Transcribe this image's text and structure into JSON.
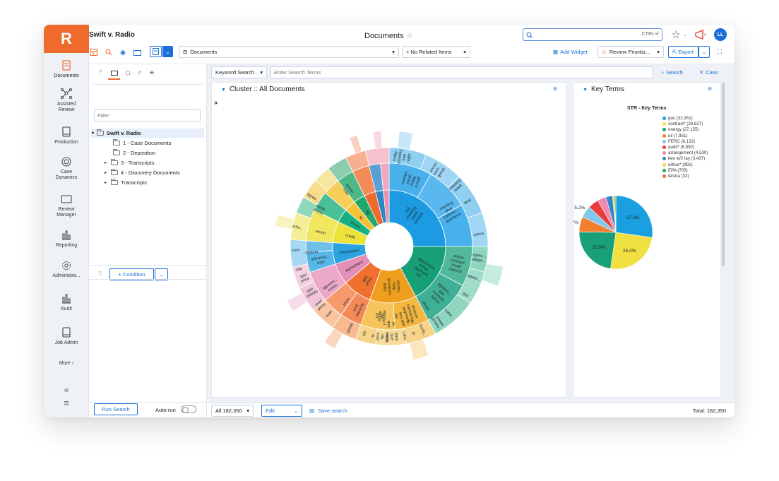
{
  "app": {
    "logo_letter": "R",
    "brand_color": "#ee6a2d",
    "accent_color": "#1a6fd8"
  },
  "header": {
    "case_title": "Swift v. Radio",
    "page_title": "Documents",
    "search_shortcut": "CTRL+/",
    "avatar_initials": "LL"
  },
  "rail": {
    "items": [
      {
        "label": "Documents",
        "icon": "documents-icon"
      },
      {
        "label": "Assisted\nReview",
        "icon": "network-icon"
      },
      {
        "label": "Production",
        "icon": "production-icon"
      },
      {
        "label": "Case\nDynamics",
        "icon": "target-icon"
      },
      {
        "label": "Review\nManager",
        "icon": "folder-icon"
      },
      {
        "label": "Reporting",
        "icon": "bar-chart-icon"
      },
      {
        "label": "Administra...",
        "icon": "gear-icon"
      },
      {
        "label": "Audit",
        "icon": "bar-chart-icon"
      },
      {
        "label": "Job Admin",
        "icon": "job-icon"
      }
    ],
    "more": "More"
  },
  "toolbar": {
    "view_select": "Documents",
    "related_select": "+ No Related Items",
    "add_widget": "Add Widget",
    "review_priority": "Review Prioritiz...",
    "export": "Export"
  },
  "leftpanel": {
    "filter_placeholder": "Filter",
    "tree": {
      "root": "Swift v. Radio",
      "children": [
        "1 - Case Documents",
        "2 - Deposition",
        "3 - Transcripts",
        "4 - Discovery Documents",
        "Transcripts"
      ]
    },
    "condition_button": "+ Condition",
    "run_search": "Run Search",
    "auto_run": "Auto-run"
  },
  "search": {
    "type": "Keyword Search",
    "placeholder": "Enter Search Terms",
    "search_button": "Search",
    "clear_button": "Clear"
  },
  "cluster_panel": {
    "title": "Cluster :: All Documents",
    "expand": "»",
    "labels": [
      {
        "t": "call\nmeeting\nweek\ncontact"
      },
      {
        "t": "agreement\nenron\npayment\nsct"
      },
      {
        "t": "ubuntu\nhelp\nproblems\nlinks"
      },
      {
        "t": "gas\nprice"
      },
      {
        "t": "agreement"
      },
      {
        "t": "information"
      },
      {
        "t": "credit"
      },
      {
        "t": "enron"
      },
      {
        "t": "ie"
      },
      {
        "t": "ltd"
      },
      {
        "t": "enron\ncontract\ncredit\ninterest"
      },
      {
        "t": "agreem...\ngas\ncontract\nterms"
      },
      {
        "t": "amount\ntransact...\npayment"
      },
      {
        "t": "enron\nmobile"
      },
      {
        "t": "end\ncapacity"
      },
      {
        "t": "informat...\nuser"
      },
      {
        "t": "system"
      },
      {
        "t": "risk"
      },
      {
        "t": "user"
      },
      {
        "t": "infor..."
      },
      {
        "t": "meeting\ndeal\ncomme...\nquestions"
      },
      {
        "t": "contact\nemail\nfriday\ne-mail"
      },
      {
        "t": "today\nmonday\nfree\nnight"
      },
      {
        "t": "enron\nenro...\ngroup"
      },
      {
        "t": "meeting\nweek"
      },
      {
        "t": "deal"
      },
      {
        "t": "enron"
      },
      {
        "t": "agree...\nobliga..."
      },
      {
        "t": "agree..."
      },
      {
        "t": "gas"
      },
      {
        "t": "contr..."
      },
      {
        "t": "power\ngenera..."
      },
      {
        "t": "power"
      },
      {
        "t": "confir..."
      },
      {
        "t": "para\nque\ncomo"
      },
      {
        "t": "lo\npero\nlas\ncomo"
      },
      {
        "t": "ich"
      },
      {
        "t": "ich\ndie"
      },
      {
        "t": "group"
      },
      {
        "t": "east"
      },
      {
        "t": "mmf\nprice"
      },
      {
        "t": "price"
      },
      {
        "t": "gas\nmmbtu"
      },
      {
        "t": "gas\nprice"
      },
      {
        "t": "agreem...\nenron"
      },
      {
        "t": "agree..."
      },
      {
        "t": "enron"
      },
      {
        "t": "credit\nenron"
      },
      {
        "t": "enron\nisda"
      },
      {
        "t": "je"
      },
      {
        "t": "und\ndie"
      },
      {
        "t": "de\nla\nque"
      },
      {
        "t": "de\nque\nil"
      },
      {
        "t": "cabo"
      }
    ]
  },
  "key_terms": {
    "panel_title": "Key Terms",
    "chart_title": "STR - Key Terms",
    "legend": [
      {
        "label": "gas (32,351)",
        "color": "#1aa0e0"
      },
      {
        "label": "contract* (29,637)",
        "color": "#f0e040"
      },
      {
        "label": "energy (27,155)",
        "color": "#1aa079"
      },
      {
        "label": "oil (7,951)",
        "color": "#f08030"
      },
      {
        "label": "FERC (6,132)",
        "color": "#80c8ec"
      },
      {
        "label": "audit* (5,592)",
        "color": "#e83c3c"
      },
      {
        "label": "arrangement (4,530)",
        "color": "#f08ab0"
      },
      {
        "label": "ken w/2 lay (3,437)",
        "color": "#2e86c8"
      },
      {
        "label": "arthur* (991)",
        "color": "#f4d24c"
      },
      {
        "label": "EPA (705)",
        "color": "#22aa55"
      },
      {
        "label": "telstra (32)",
        "color": "#f06a30"
      }
    ],
    "pie_labels": [
      "27.3%",
      "25.0%",
      "22.9%",
      "6.7%",
      "5.2%"
    ]
  },
  "chart_data": {
    "type": "pie",
    "title": "STR - Key Terms",
    "categories": [
      "gas",
      "contract*",
      "energy",
      "oil",
      "FERC",
      "audit*",
      "arrangement",
      "ken w/2 lay",
      "arthur*",
      "EPA",
      "telstra"
    ],
    "values": [
      32351,
      29637,
      27155,
      7951,
      6132,
      5592,
      4530,
      3437,
      991,
      705,
      32
    ],
    "percent_labels": [
      "27.3%",
      "25.0%",
      "22.9%",
      "6.7%",
      "5.2%"
    ],
    "legend_position": "top-right"
  },
  "bottom": {
    "all_count": "All 182,350",
    "edit": "Edit",
    "save_search": "Save search",
    "total": "Total: 182,350"
  }
}
